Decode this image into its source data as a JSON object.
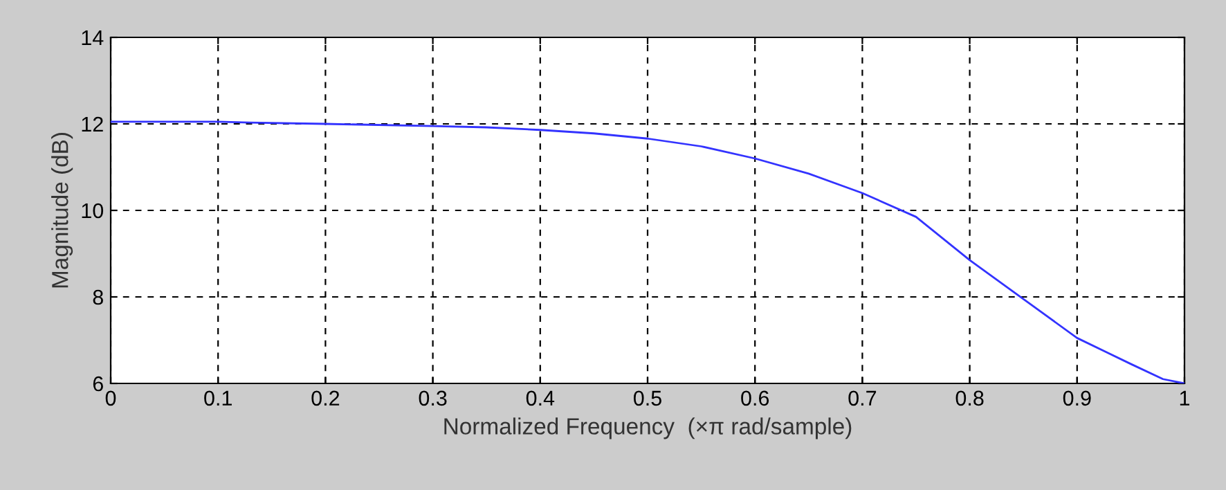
{
  "chart_data": {
    "type": "line",
    "xlabel": "Normalized Frequency  (×π rad/sample)",
    "ylabel": "Magnitude (dB)",
    "x": [
      0,
      0.05,
      0.1,
      0.13,
      0.2,
      0.3,
      0.35,
      0.4,
      0.45,
      0.5,
      0.55,
      0.6,
      0.65,
      0.7,
      0.75,
      0.8,
      0.85,
      0.9,
      0.95,
      0.98,
      1.0
    ],
    "series": [
      {
        "color": "#3333ff",
        "values": [
          12.05,
          12.05,
          12.05,
          12.03,
          12.0,
          11.95,
          11.92,
          11.86,
          11.78,
          11.66,
          11.48,
          11.2,
          10.85,
          10.4,
          9.85,
          8.85,
          7.95,
          7.05,
          6.45,
          6.1,
          6.0
        ]
      }
    ],
    "xlim": [
      0,
      1
    ],
    "ylim": [
      6,
      14
    ],
    "xticks": [
      0,
      0.1,
      0.2,
      0.3,
      0.4,
      0.5,
      0.6,
      0.7,
      0.8,
      0.9,
      1
    ],
    "yticks": [
      6,
      8,
      10,
      12,
      14
    ],
    "grid": true,
    "line_style": "solid",
    "marker": "none"
  }
}
